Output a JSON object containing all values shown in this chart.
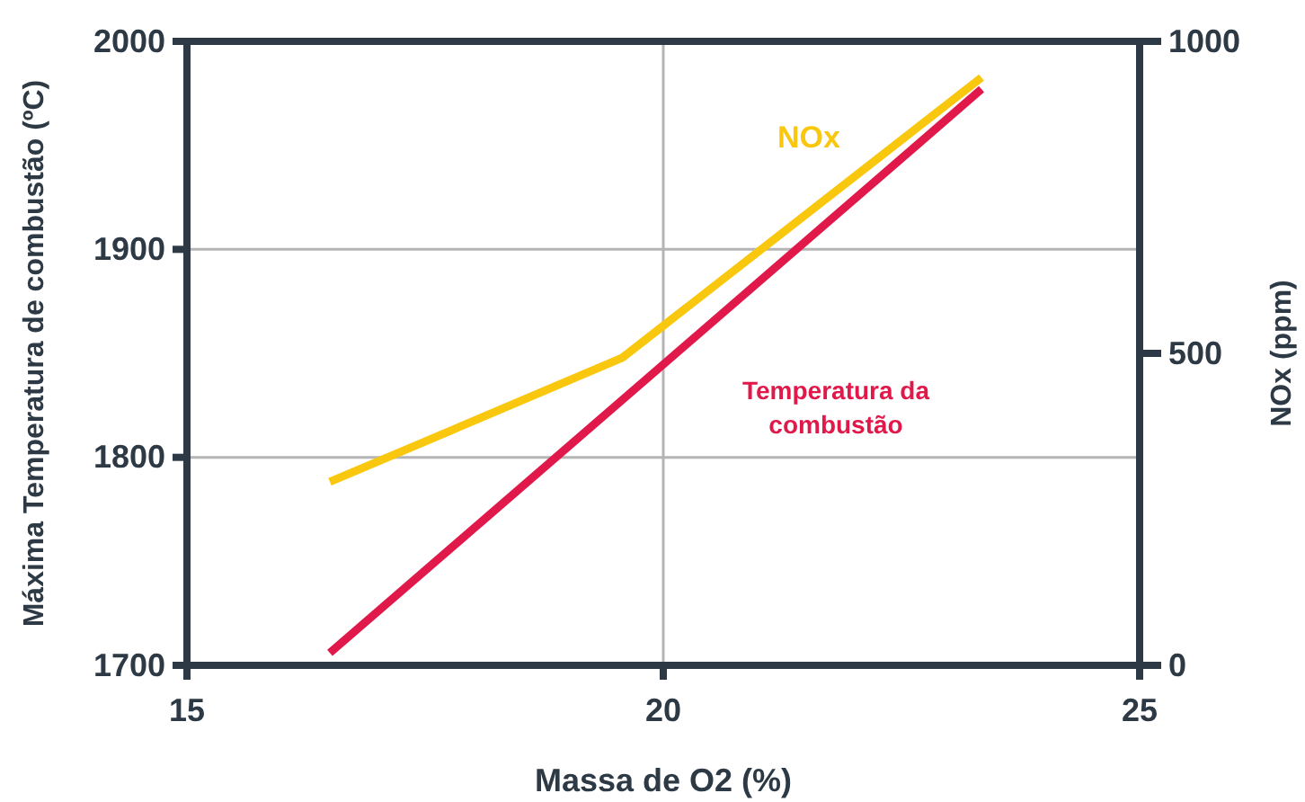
{
  "chart_data": {
    "type": "line",
    "xlabel": "Massa de O2 (%)",
    "ylabel": "Máxima Temperatura de combustão (ºC)",
    "y2label": "NOx (ppm)",
    "xlim": [
      15,
      25
    ],
    "xticks": [
      15,
      20,
      25
    ],
    "ylim": [
      1700,
      2000
    ],
    "yticks": [
      1700,
      1800,
      1900,
      2000
    ],
    "y2lim": [
      0,
      1000
    ],
    "y2ticks": [
      0,
      500,
      1000
    ],
    "grid": true,
    "series": [
      {
        "name": "Temperatura da combustão",
        "color": "#e0194a",
        "x": [
          16.5,
          23.34
        ],
        "values": [
          1706,
          1977
        ]
      },
      {
        "name": "NOx",
        "color": "#f9c80e",
        "axis": "y2",
        "x": [
          16.5,
          19.57,
          23.34
        ],
        "values": [
          294,
          493,
          942
        ]
      }
    ]
  }
}
